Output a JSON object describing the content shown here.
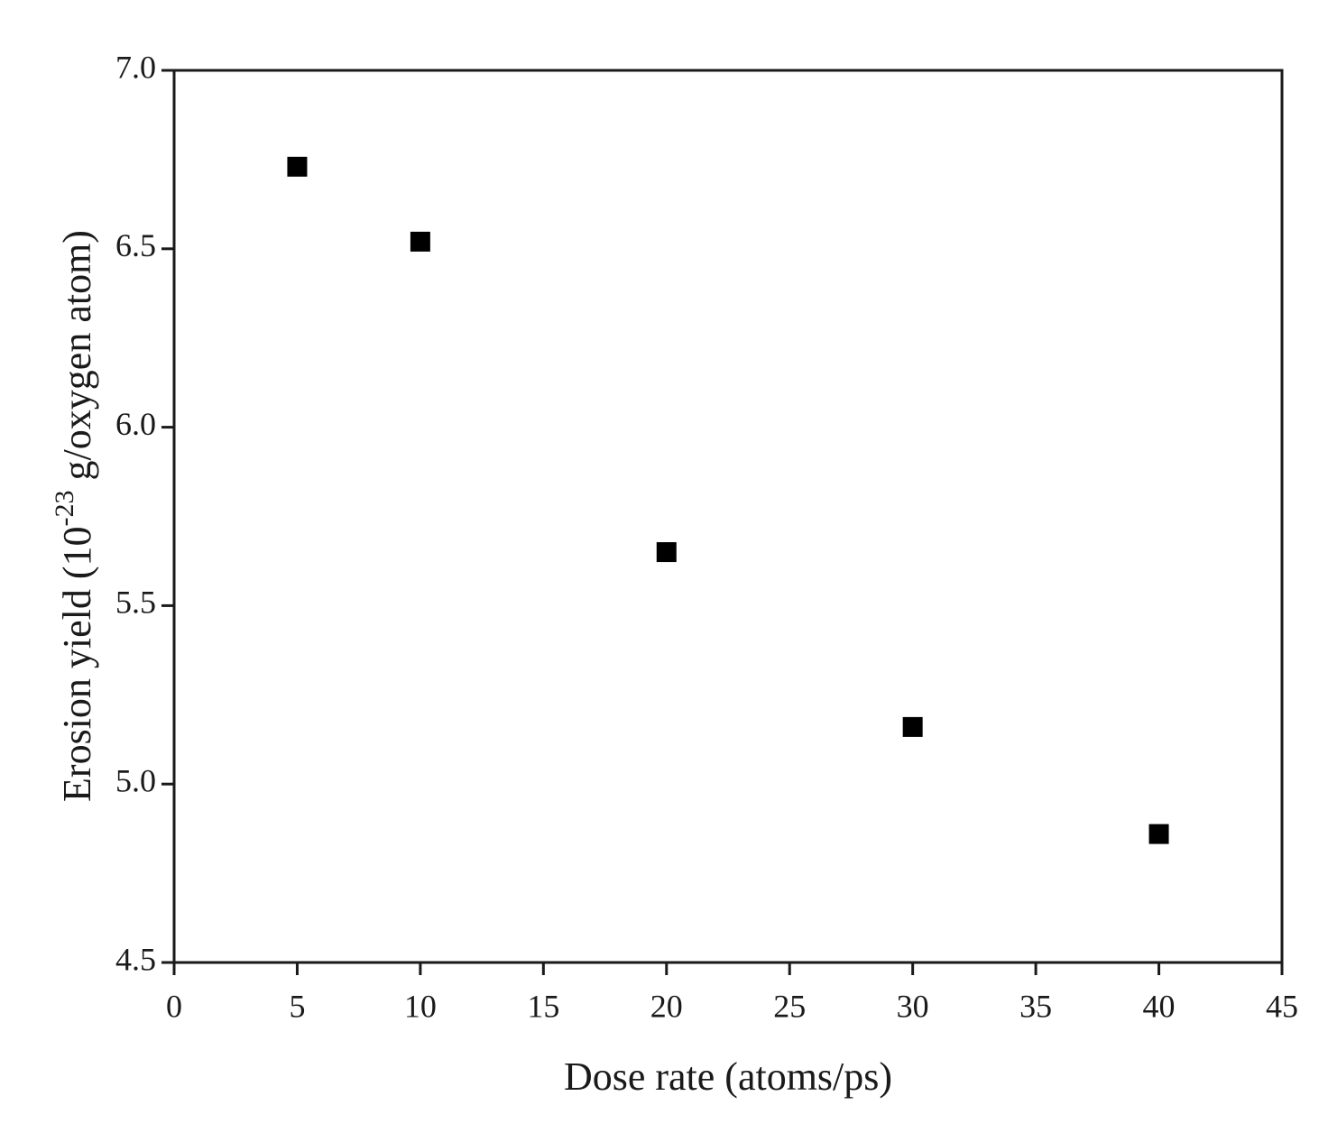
{
  "chart_data": {
    "type": "scatter",
    "x_label": "Dose rate (atoms/ps)",
    "y_label": [
      "Erosion yield (10",
      "-23",
      " g/oxygen atom)"
    ],
    "series": [
      {
        "color": "#000000",
        "x": [
          5,
          10,
          20,
          30,
          40
        ],
        "values": [
          6.73,
          6.52,
          5.65,
          5.16,
          4.86
        ]
      }
    ],
    "xlim": [
      0,
      45
    ],
    "xticks": [
      0,
      5,
      10,
      15,
      20,
      25,
      30,
      35,
      40,
      45
    ],
    "ylim": [
      4.5,
      7.0
    ],
    "yticks": [
      4.5,
      {
        "value": 5.0,
        "label": "5.0"
      },
      5.5,
      {
        "value": 6.0,
        "label": "6.0"
      },
      6.5,
      {
        "value": 7.0,
        "label": "7.0"
      }
    ],
    "grid": false
  }
}
